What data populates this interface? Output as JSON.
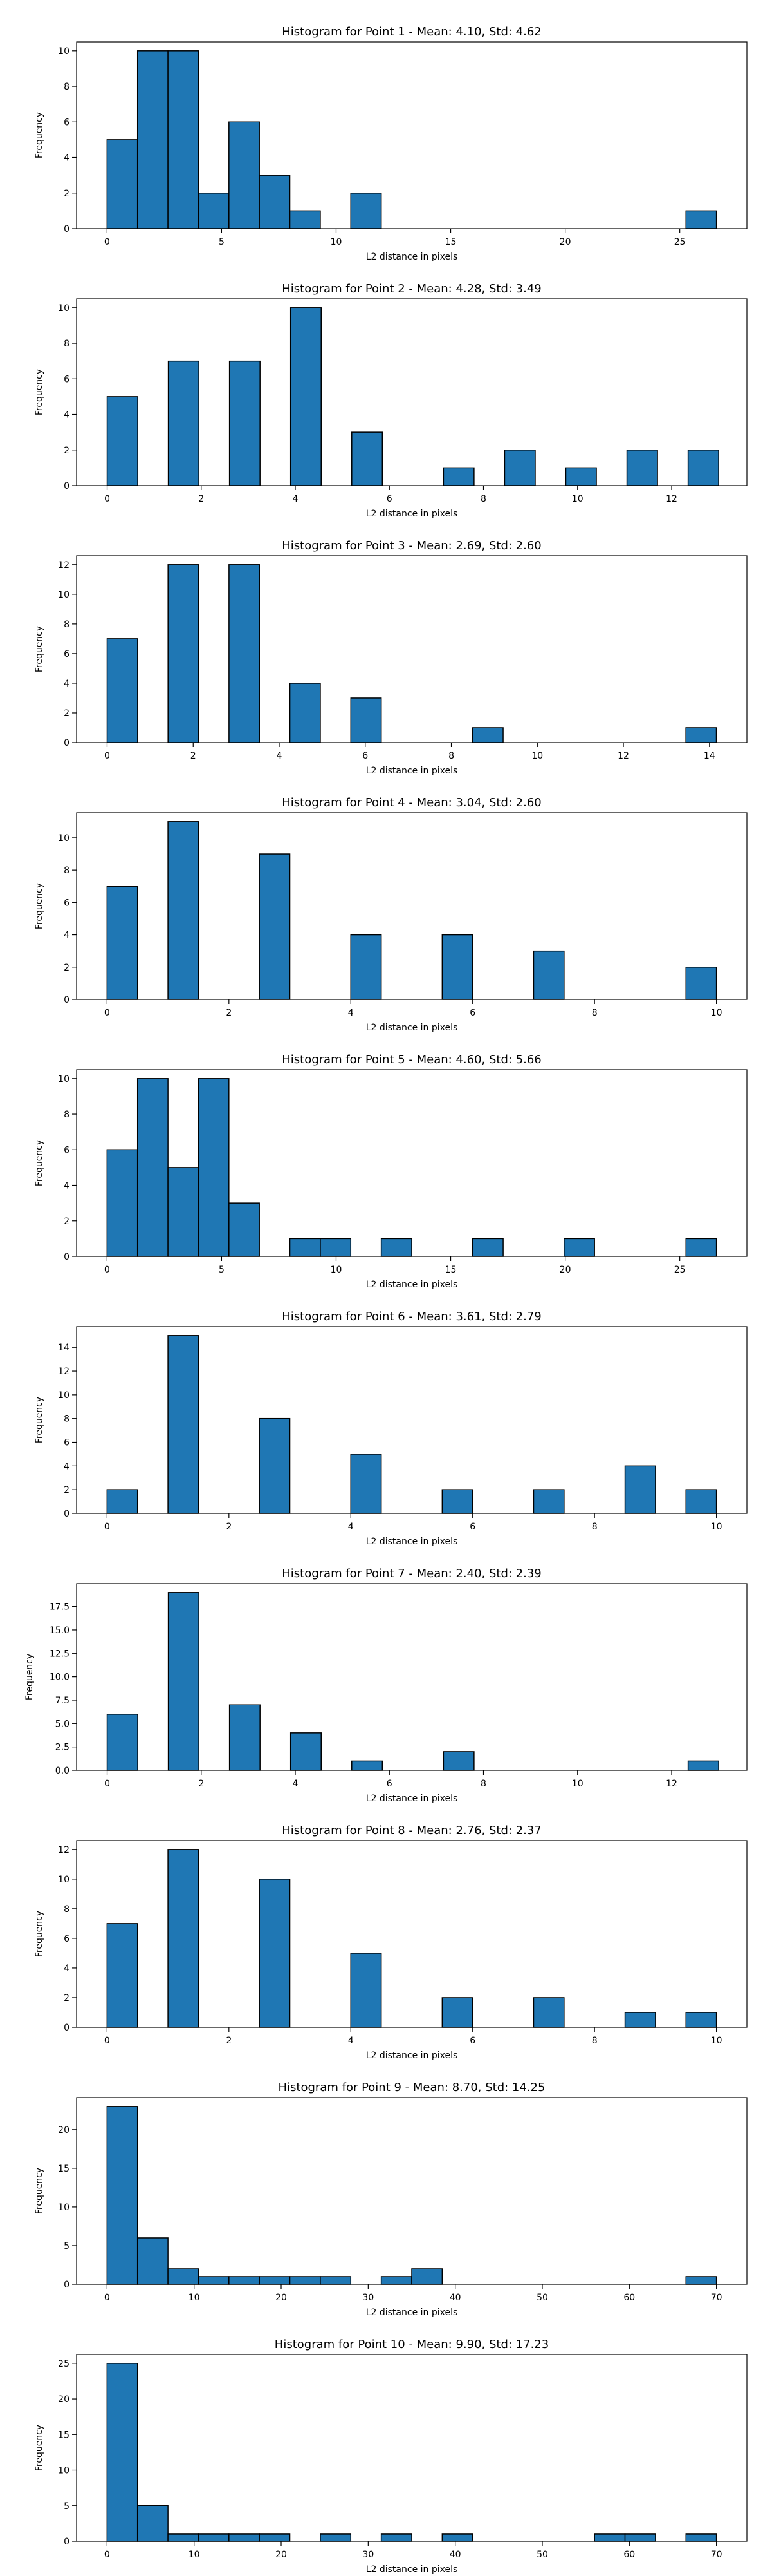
{
  "colors": {
    "bar_fill": "#1f77b4",
    "bar_edge": "#000000",
    "axes": "#000000"
  },
  "chart_data": [
    {
      "type": "bar",
      "title": "Histogram for Point 1 - Mean: 4.10, Std: 4.62",
      "xlabel": "L2 distance in pixels",
      "ylabel": "Frequency",
      "xlim": [
        -1.33,
        27.93
      ],
      "ylim": [
        0,
        10.5
      ],
      "xticks": [
        0,
        5,
        10,
        15,
        20,
        25
      ],
      "yticks": [
        0,
        2,
        4,
        6,
        8,
        10
      ],
      "bins": [
        {
          "x0": 0,
          "x1": 1.33,
          "count": 5
        },
        {
          "x0": 1.33,
          "x1": 2.66,
          "count": 10
        },
        {
          "x0": 2.66,
          "x1": 3.99,
          "count": 10
        },
        {
          "x0": 3.99,
          "x1": 5.32,
          "count": 2
        },
        {
          "x0": 5.32,
          "x1": 6.65,
          "count": 6
        },
        {
          "x0": 6.65,
          "x1": 7.98,
          "count": 3
        },
        {
          "x0": 7.98,
          "x1": 9.31,
          "count": 1
        },
        {
          "x0": 10.64,
          "x1": 11.97,
          "count": 2
        },
        {
          "x0": 25.27,
          "x1": 26.6,
          "count": 1
        }
      ]
    },
    {
      "type": "bar",
      "title": "Histogram for Point 2 - Mean: 4.28, Std: 3.49",
      "xlabel": "L2 distance in pixels",
      "ylabel": "Frequency",
      "xlim": [
        -0.65,
        13.6
      ],
      "ylim": [
        0,
        10.5
      ],
      "xticks": [
        0,
        2,
        4,
        6,
        8,
        10,
        12
      ],
      "yticks": [
        0,
        2,
        4,
        6,
        8,
        10
      ],
      "bins": [
        {
          "x0": 0,
          "x1": 0.65,
          "count": 5
        },
        {
          "x0": 1.3,
          "x1": 1.95,
          "count": 7
        },
        {
          "x0": 2.6,
          "x1": 3.25,
          "count": 7
        },
        {
          "x0": 3.9,
          "x1": 4.55,
          "count": 10
        },
        {
          "x0": 5.2,
          "x1": 5.85,
          "count": 3
        },
        {
          "x0": 7.15,
          "x1": 7.8,
          "count": 1
        },
        {
          "x0": 8.45,
          "x1": 9.1,
          "count": 2
        },
        {
          "x0": 9.75,
          "x1": 10.4,
          "count": 1
        },
        {
          "x0": 11.05,
          "x1": 11.7,
          "count": 2
        },
        {
          "x0": 12.35,
          "x1": 13.0,
          "count": 2
        }
      ]
    },
    {
      "type": "bar",
      "title": "Histogram for Point 3 - Mean: 2.69, Std: 2.60",
      "xlabel": "L2 distance in pixels",
      "ylabel": "Frequency",
      "xlim": [
        -0.71,
        14.87
      ],
      "ylim": [
        0,
        12.6
      ],
      "xticks": [
        0,
        2,
        4,
        6,
        8,
        10,
        12,
        14
      ],
      "yticks": [
        0,
        2,
        4,
        6,
        8,
        10,
        12
      ],
      "bins": [
        {
          "x0": 0,
          "x1": 0.708,
          "count": 7
        },
        {
          "x0": 1.416,
          "x1": 2.124,
          "count": 12
        },
        {
          "x0": 2.832,
          "x1": 3.54,
          "count": 12
        },
        {
          "x0": 4.248,
          "x1": 4.956,
          "count": 4
        },
        {
          "x0": 5.664,
          "x1": 6.372,
          "count": 3
        },
        {
          "x0": 8.496,
          "x1": 9.204,
          "count": 1
        },
        {
          "x0": 13.452,
          "x1": 14.16,
          "count": 1
        }
      ]
    },
    {
      "type": "bar",
      "title": "Histogram for Point 4 - Mean: 3.04, Std: 2.60",
      "xlabel": "L2 distance in pixels",
      "ylabel": "Frequency",
      "xlim": [
        -0.5,
        10.5
      ],
      "ylim": [
        0,
        11.55
      ],
      "xticks": [
        0,
        2,
        4,
        6,
        8,
        10
      ],
      "yticks": [
        0,
        2,
        4,
        6,
        8,
        10
      ],
      "bins": [
        {
          "x0": 0,
          "x1": 0.5,
          "count": 7
        },
        {
          "x0": 1.0,
          "x1": 1.5,
          "count": 11
        },
        {
          "x0": 2.5,
          "x1": 3.0,
          "count": 9
        },
        {
          "x0": 4.0,
          "x1": 4.5,
          "count": 4
        },
        {
          "x0": 5.5,
          "x1": 6.0,
          "count": 4
        },
        {
          "x0": 7.0,
          "x1": 7.5,
          "count": 3
        },
        {
          "x0": 9.5,
          "x1": 10.0,
          "count": 2
        }
      ]
    },
    {
      "type": "bar",
      "title": "Histogram for Point 5 - Mean: 4.60, Std: 5.66",
      "xlabel": "L2 distance in pixels",
      "ylabel": "Frequency",
      "xlim": [
        -1.33,
        27.93
      ],
      "ylim": [
        0,
        10.5
      ],
      "xticks": [
        0,
        5,
        10,
        15,
        20,
        25
      ],
      "yticks": [
        0,
        2,
        4,
        6,
        8,
        10
      ],
      "bins": [
        {
          "x0": 0,
          "x1": 1.33,
          "count": 6
        },
        {
          "x0": 1.33,
          "x1": 2.66,
          "count": 10
        },
        {
          "x0": 2.66,
          "x1": 3.99,
          "count": 5
        },
        {
          "x0": 3.99,
          "x1": 5.32,
          "count": 10
        },
        {
          "x0": 5.32,
          "x1": 6.65,
          "count": 3
        },
        {
          "x0": 7.98,
          "x1": 9.31,
          "count": 1
        },
        {
          "x0": 9.31,
          "x1": 10.64,
          "count": 1
        },
        {
          "x0": 11.97,
          "x1": 13.3,
          "count": 1
        },
        {
          "x0": 15.96,
          "x1": 17.29,
          "count": 1
        },
        {
          "x0": 19.95,
          "x1": 21.28,
          "count": 1
        },
        {
          "x0": 25.27,
          "x1": 26.6,
          "count": 1
        }
      ]
    },
    {
      "type": "bar",
      "title": "Histogram for Point 6 - Mean: 3.61, Std: 2.79",
      "xlabel": "L2 distance in pixels",
      "ylabel": "Frequency",
      "xlim": [
        -0.5,
        10.5
      ],
      "ylim": [
        0,
        15.75
      ],
      "xticks": [
        0,
        2,
        4,
        6,
        8,
        10
      ],
      "yticks": [
        0,
        2,
        4,
        6,
        8,
        10,
        12,
        14
      ],
      "bins": [
        {
          "x0": 0,
          "x1": 0.5,
          "count": 2
        },
        {
          "x0": 1.0,
          "x1": 1.5,
          "count": 15
        },
        {
          "x0": 2.5,
          "x1": 3.0,
          "count": 8
        },
        {
          "x0": 4.0,
          "x1": 4.5,
          "count": 5
        },
        {
          "x0": 5.5,
          "x1": 6.0,
          "count": 2
        },
        {
          "x0": 7.0,
          "x1": 7.5,
          "count": 2
        },
        {
          "x0": 8.5,
          "x1": 9.0,
          "count": 4
        },
        {
          "x0": 9.5,
          "x1": 10.0,
          "count": 2
        }
      ]
    },
    {
      "type": "bar",
      "title": "Histogram for Point 7 - Mean: 2.40, Std: 2.39",
      "xlabel": "L2 distance in pixels",
      "ylabel": "Frequency",
      "xlim": [
        -0.65,
        13.6
      ],
      "ylim": [
        0,
        19.95
      ],
      "xticks": [
        0,
        2,
        4,
        6,
        8,
        10,
        12
      ],
      "yticks": [
        0.0,
        2.5,
        5.0,
        7.5,
        10.0,
        12.5,
        15.0,
        17.5
      ],
      "ytick_decimals": 1,
      "bins": [
        {
          "x0": 0,
          "x1": 0.65,
          "count": 6
        },
        {
          "x0": 1.3,
          "x1": 1.95,
          "count": 19
        },
        {
          "x0": 2.6,
          "x1": 3.25,
          "count": 7
        },
        {
          "x0": 3.9,
          "x1": 4.55,
          "count": 4
        },
        {
          "x0": 5.2,
          "x1": 5.85,
          "count": 1
        },
        {
          "x0": 7.15,
          "x1": 7.8,
          "count": 2
        },
        {
          "x0": 12.35,
          "x1": 13.0,
          "count": 1
        }
      ]
    },
    {
      "type": "bar",
      "title": "Histogram for Point 8 - Mean: 2.76, Std: 2.37",
      "xlabel": "L2 distance in pixels",
      "ylabel": "Frequency",
      "xlim": [
        -0.5,
        10.5
      ],
      "ylim": [
        0,
        12.6
      ],
      "xticks": [
        0,
        2,
        4,
        6,
        8,
        10
      ],
      "yticks": [
        0,
        2,
        4,
        6,
        8,
        10,
        12
      ],
      "bins": [
        {
          "x0": 0,
          "x1": 0.5,
          "count": 7
        },
        {
          "x0": 1.0,
          "x1": 1.5,
          "count": 12
        },
        {
          "x0": 2.5,
          "x1": 3.0,
          "count": 10
        },
        {
          "x0": 4.0,
          "x1": 4.5,
          "count": 5
        },
        {
          "x0": 5.5,
          "x1": 6.0,
          "count": 2
        },
        {
          "x0": 7.0,
          "x1": 7.5,
          "count": 2
        },
        {
          "x0": 8.5,
          "x1": 9.0,
          "count": 1
        },
        {
          "x0": 9.5,
          "x1": 10.0,
          "count": 1
        }
      ]
    },
    {
      "type": "bar",
      "title": "Histogram for Point 9 - Mean: 8.70, Std: 14.25",
      "xlabel": "L2 distance in pixels",
      "ylabel": "Frequency",
      "xlim": [
        -3.5,
        73.5
      ],
      "ylim": [
        0,
        24.15
      ],
      "xticks": [
        0,
        10,
        20,
        30,
        40,
        50,
        60,
        70
      ],
      "yticks": [
        0,
        5,
        10,
        15,
        20
      ],
      "bins": [
        {
          "x0": 0,
          "x1": 3.5,
          "count": 23
        },
        {
          "x0": 3.5,
          "x1": 7.0,
          "count": 6
        },
        {
          "x0": 7.0,
          "x1": 10.5,
          "count": 2
        },
        {
          "x0": 10.5,
          "x1": 14.0,
          "count": 1
        },
        {
          "x0": 14.0,
          "x1": 17.5,
          "count": 1
        },
        {
          "x0": 17.5,
          "x1": 21.0,
          "count": 1
        },
        {
          "x0": 21.0,
          "x1": 24.5,
          "count": 1
        },
        {
          "x0": 24.5,
          "x1": 28.0,
          "count": 1
        },
        {
          "x0": 31.5,
          "x1": 35.0,
          "count": 1
        },
        {
          "x0": 35.0,
          "x1": 38.5,
          "count": 2
        },
        {
          "x0": 66.5,
          "x1": 70.0,
          "count": 1
        }
      ]
    },
    {
      "type": "bar",
      "title": "Histogram for Point 10 - Mean: 9.90, Std: 17.23",
      "xlabel": "L2 distance in pixels",
      "ylabel": "Frequency",
      "xlim": [
        -3.5,
        73.5
      ],
      "ylim": [
        0,
        26.25
      ],
      "xticks": [
        0,
        10,
        20,
        30,
        40,
        50,
        60,
        70
      ],
      "yticks": [
        0,
        5,
        10,
        15,
        20,
        25
      ],
      "bins": [
        {
          "x0": 0,
          "x1": 3.5,
          "count": 25
        },
        {
          "x0": 3.5,
          "x1": 7.0,
          "count": 5
        },
        {
          "x0": 7.0,
          "x1": 10.5,
          "count": 1
        },
        {
          "x0": 10.5,
          "x1": 14.0,
          "count": 1
        },
        {
          "x0": 14.0,
          "x1": 17.5,
          "count": 1
        },
        {
          "x0": 17.5,
          "x1": 21.0,
          "count": 1
        },
        {
          "x0": 24.5,
          "x1": 28.0,
          "count": 1
        },
        {
          "x0": 31.5,
          "x1": 35.0,
          "count": 1
        },
        {
          "x0": 38.5,
          "x1": 42.0,
          "count": 1
        },
        {
          "x0": 56.0,
          "x1": 59.5,
          "count": 1
        },
        {
          "x0": 59.5,
          "x1": 63.0,
          "count": 1
        },
        {
          "x0": 66.5,
          "x1": 70.0,
          "count": 1
        }
      ]
    }
  ]
}
